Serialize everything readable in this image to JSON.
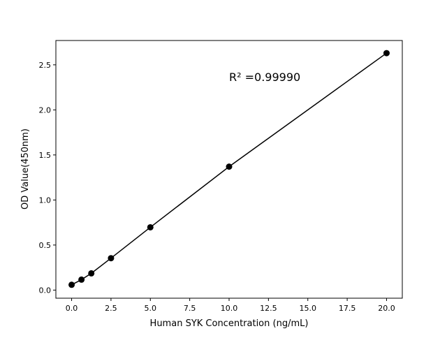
{
  "chart_data": {
    "type": "scatter",
    "title": "",
    "xlabel": "Human SYK Concentration (ng/mL)",
    "ylabel": "OD Value(450nm)",
    "xlim": [
      -1,
      21
    ],
    "ylim": [
      -0.09,
      2.77
    ],
    "x_ticks": [
      0.0,
      2.5,
      5.0,
      7.5,
      10.0,
      12.5,
      15.0,
      17.5,
      20.0
    ],
    "x_tick_labels": [
      "0.0",
      "2.5",
      "5.0",
      "7.5",
      "10.0",
      "12.5",
      "15.0",
      "17.5",
      "20.0"
    ],
    "y_ticks": [
      0.0,
      0.5,
      1.0,
      1.5,
      2.0,
      2.5
    ],
    "y_tick_labels": [
      "0.0",
      "0.5",
      "1.0",
      "1.5",
      "2.0",
      "2.5"
    ],
    "grid": false,
    "series": [
      {
        "x": [
          0,
          0.625,
          1.25,
          2.5,
          5,
          10,
          20
        ],
        "y": [
          0.059,
          0.116,
          0.186,
          0.354,
          0.697,
          1.37,
          2.63
        ],
        "color": "#000000",
        "marker": "circle",
        "line": true
      }
    ],
    "annotations": [
      {
        "text": "R² =0.99990",
        "x": 10,
        "y": 2.36
      }
    ]
  }
}
